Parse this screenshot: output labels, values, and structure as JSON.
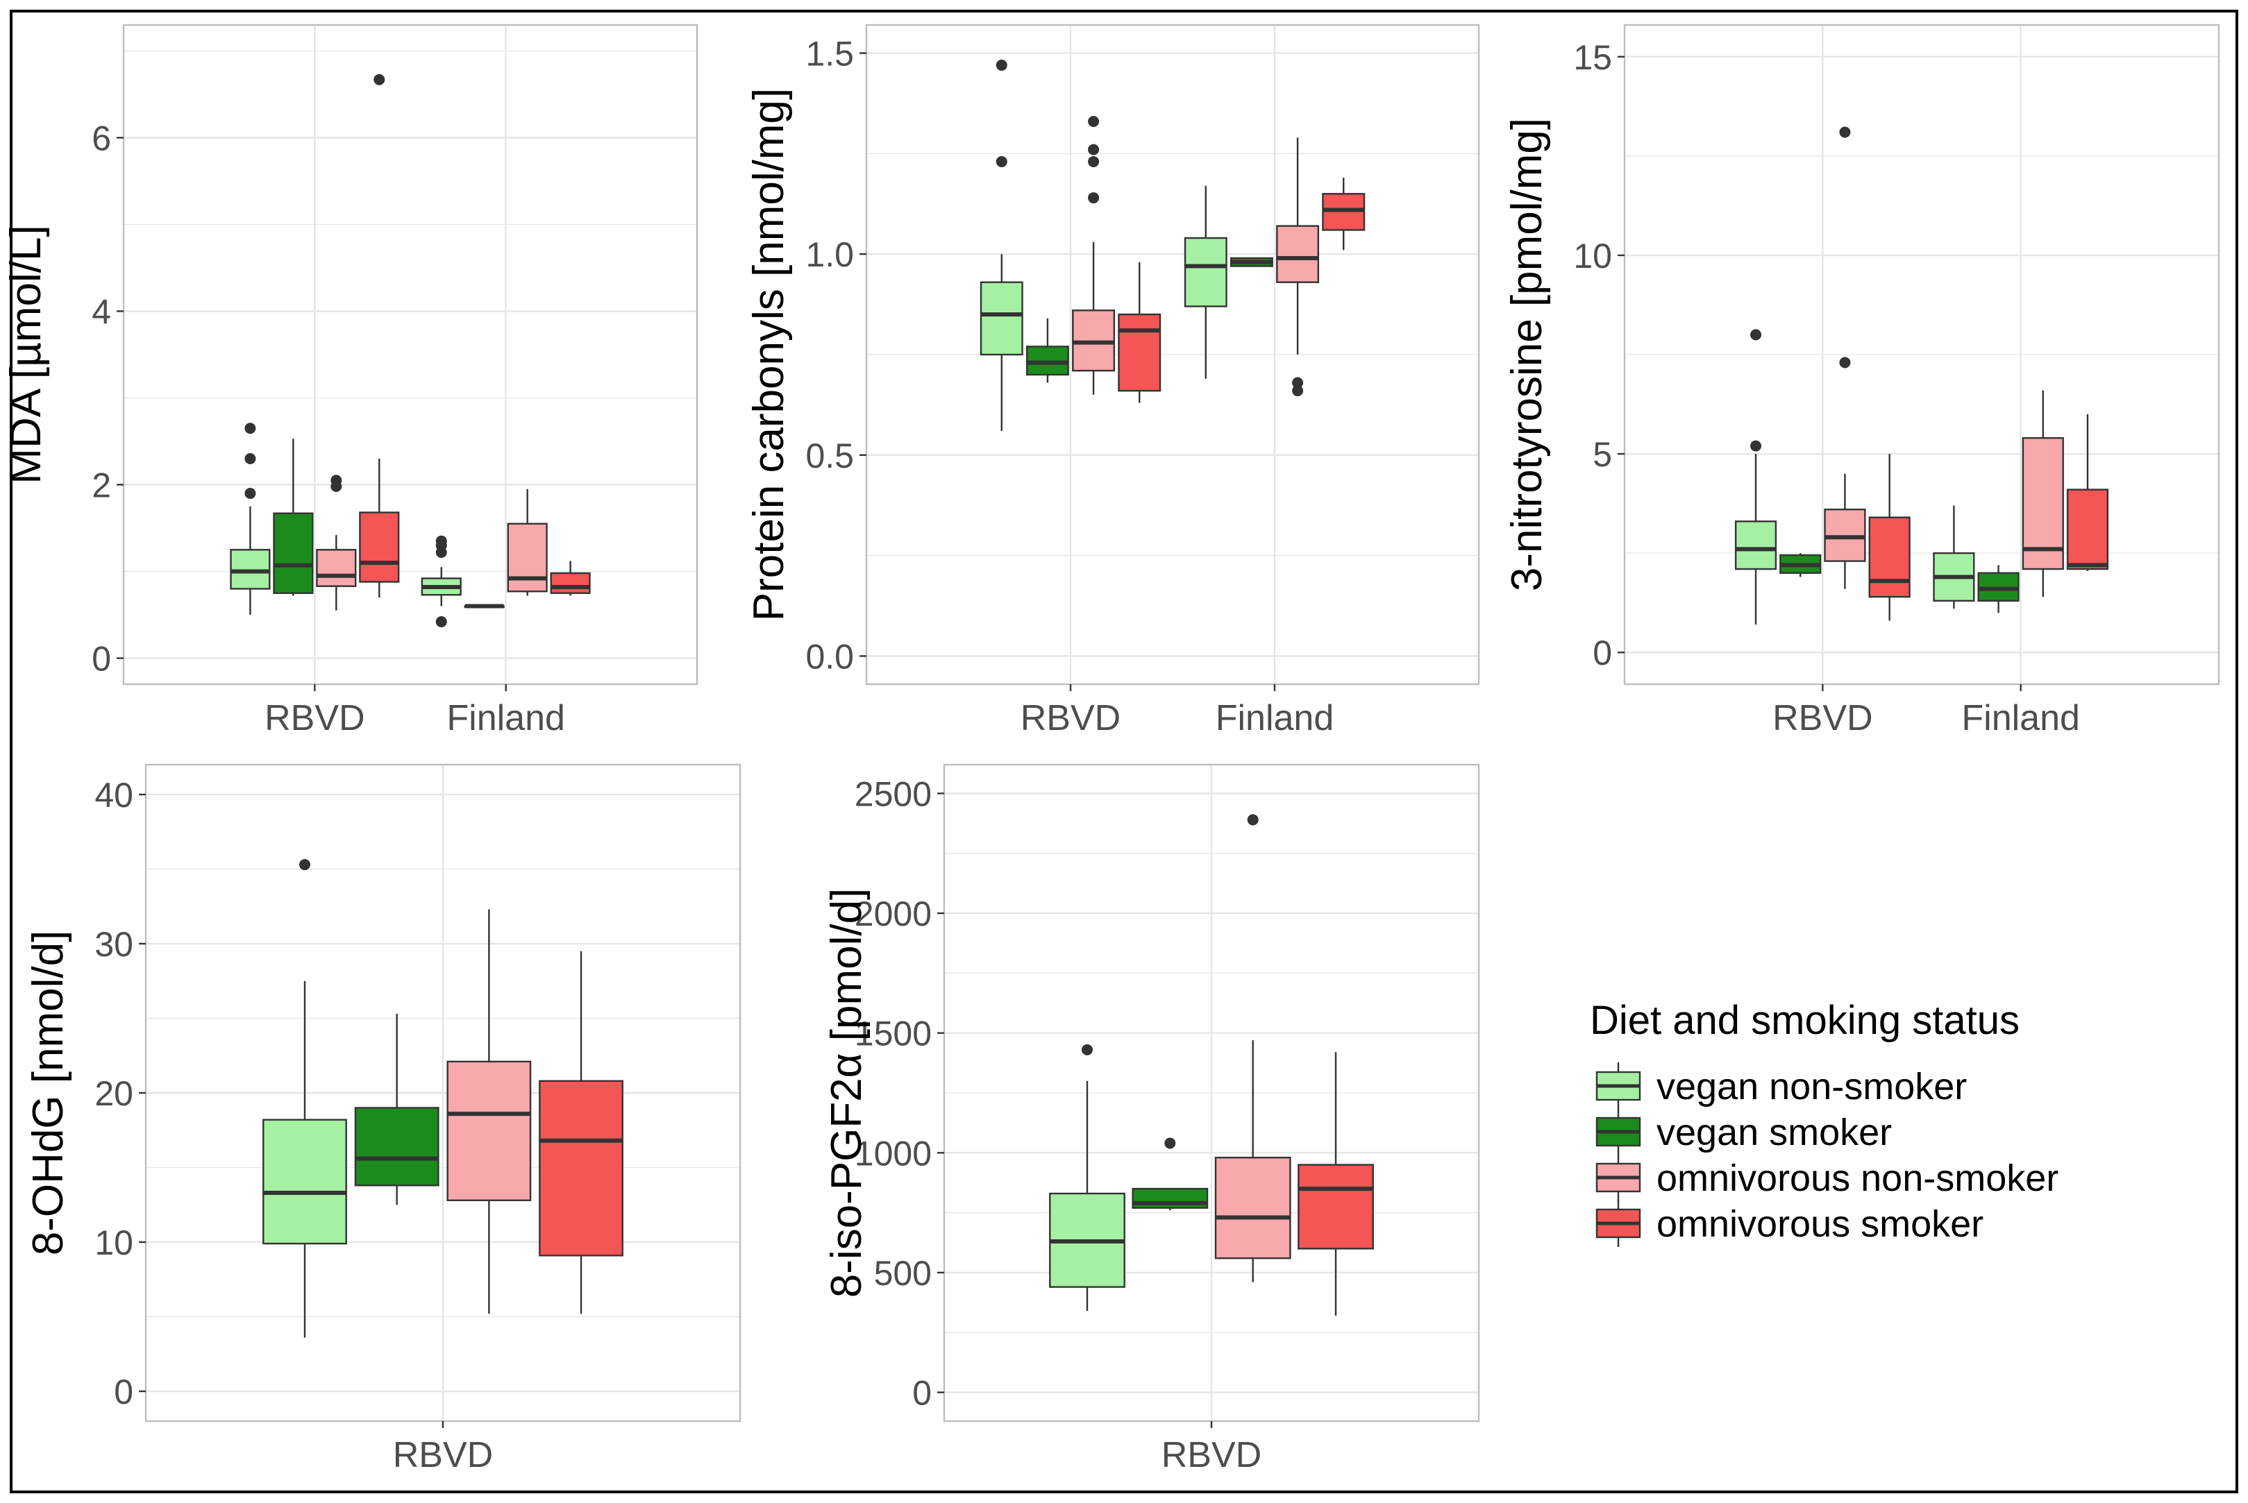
{
  "colors": {
    "vegan_non_smoker": "#a6f0a4",
    "vegan_smoker": "#1b8c1b",
    "omnivorous_non_smoker": "#f6a8aa",
    "omnivorous_smoker": "#f45555",
    "grid": "#e6e6e6",
    "panel_border": "#bdbdbd",
    "outer_border": "#000000"
  },
  "legend": {
    "title": "Diet and smoking status",
    "items": [
      {
        "key": "vegan_non_smoker",
        "label": "vegan non-smoker"
      },
      {
        "key": "vegan_smoker",
        "label": "vegan smoker"
      },
      {
        "key": "omnivorous_non_smoker",
        "label": "omnivorous non-smoker"
      },
      {
        "key": "omnivorous_smoker",
        "label": "omnivorous smoker"
      }
    ]
  },
  "chart_data": [
    {
      "type": "boxplot",
      "ylabel": "MDA [µmol/L]",
      "ylim": [
        -0.3,
        7.3
      ],
      "yticks": [
        0,
        2,
        4,
        6
      ],
      "yticklabels": [
        "0",
        "2",
        "4",
        "6"
      ],
      "categories": [
        "RBVD",
        "Finland"
      ],
      "series": [
        {
          "name": "vegan non-smoker",
          "key": "vegan_non_smoker",
          "boxes": [
            {
              "category": "RBVD",
              "min": 0.5,
              "q1": 0.8,
              "median": 1.0,
              "q3": 1.25,
              "max": 1.75,
              "outliers": [
                1.9,
                2.3,
                2.65
              ]
            },
            {
              "category": "Finland",
              "min": 0.6,
              "q1": 0.73,
              "median": 0.82,
              "q3": 0.92,
              "max": 1.05,
              "outliers": [
                0.42,
                1.22,
                1.3,
                1.35
              ]
            }
          ]
        },
        {
          "name": "vegan smoker",
          "key": "vegan_smoker",
          "boxes": [
            {
              "category": "RBVD",
              "min": 0.72,
              "q1": 0.75,
              "median": 1.07,
              "q3": 1.67,
              "max": 2.53,
              "outliers": []
            },
            {
              "category": "Finland",
              "min": 0.6,
              "q1": 0.6,
              "median": 0.6,
              "q3": 0.6,
              "max": 0.6,
              "outliers": []
            }
          ]
        },
        {
          "name": "omnivorous non-smoker",
          "key": "omnivorous_non_smoker",
          "boxes": [
            {
              "category": "RBVD",
              "min": 0.55,
              "q1": 0.83,
              "median": 0.95,
              "q3": 1.25,
              "max": 1.42,
              "outliers": [
                1.98,
                2.05
              ]
            },
            {
              "category": "Finland",
              "min": 0.72,
              "q1": 0.77,
              "median": 0.92,
              "q3": 1.55,
              "max": 1.95,
              "outliers": []
            }
          ]
        },
        {
          "name": "omnivorous smoker",
          "key": "omnivorous_smoker",
          "boxes": [
            {
              "category": "RBVD",
              "min": 0.7,
              "q1": 0.88,
              "median": 1.1,
              "q3": 1.68,
              "max": 2.3,
              "outliers": [
                6.67
              ]
            },
            {
              "category": "Finland",
              "min": 0.72,
              "q1": 0.75,
              "median": 0.82,
              "q3": 0.98,
              "max": 1.12,
              "outliers": []
            }
          ]
        }
      ]
    },
    {
      "type": "boxplot",
      "ylabel": "Protein carbonyls [nmol/mg]",
      "ylim": [
        -0.07,
        1.57
      ],
      "yticks": [
        0,
        0.5,
        1.0,
        1.5
      ],
      "yticklabels": [
        "0.0",
        "0.5",
        "1.0",
        "1.5"
      ],
      "categories": [
        "RBVD",
        "Finland"
      ],
      "series": [
        {
          "name": "vegan non-smoker",
          "key": "vegan_non_smoker",
          "boxes": [
            {
              "category": "RBVD",
              "min": 0.56,
              "q1": 0.75,
              "median": 0.85,
              "q3": 0.93,
              "max": 1.0,
              "outliers": [
                1.23,
                1.47
              ]
            },
            {
              "category": "Finland",
              "min": 0.69,
              "q1": 0.87,
              "median": 0.97,
              "q3": 1.04,
              "max": 1.17,
              "outliers": []
            }
          ]
        },
        {
          "name": "vegan smoker",
          "key": "vegan_smoker",
          "boxes": [
            {
              "category": "RBVD",
              "min": 0.68,
              "q1": 0.7,
              "median": 0.73,
              "q3": 0.77,
              "max": 0.84,
              "outliers": []
            },
            {
              "category": "Finland",
              "min": 0.97,
              "q1": 0.97,
              "median": 0.98,
              "q3": 0.99,
              "max": 0.99,
              "outliers": []
            }
          ]
        },
        {
          "name": "omnivorous non-smoker",
          "key": "omnivorous_non_smoker",
          "boxes": [
            {
              "category": "RBVD",
              "min": 0.65,
              "q1": 0.71,
              "median": 0.78,
              "q3": 0.86,
              "max": 1.03,
              "outliers": [
                1.14,
                1.23,
                1.26,
                1.33
              ]
            },
            {
              "category": "Finland",
              "min": 0.75,
              "q1": 0.93,
              "median": 0.99,
              "q3": 1.07,
              "max": 1.29,
              "outliers": [
                0.66,
                0.68
              ]
            }
          ]
        },
        {
          "name": "omnivorous smoker",
          "key": "omnivorous_smoker",
          "boxes": [
            {
              "category": "RBVD",
              "min": 0.63,
              "q1": 0.66,
              "median": 0.81,
              "q3": 0.85,
              "max": 0.98,
              "outliers": []
            },
            {
              "category": "Finland",
              "min": 1.01,
              "q1": 1.06,
              "median": 1.11,
              "q3": 1.15,
              "max": 1.19,
              "outliers": []
            }
          ]
        }
      ]
    },
    {
      "type": "boxplot",
      "ylabel": "3-nitrotyrosine [pmol/mg]",
      "ylim": [
        -0.8,
        15.8
      ],
      "yticks": [
        0,
        5,
        10,
        15
      ],
      "yticklabels": [
        "0",
        "5",
        "10",
        "15"
      ],
      "categories": [
        "RBVD",
        "Finland"
      ],
      "series": [
        {
          "name": "vegan non-smoker",
          "key": "vegan_non_smoker",
          "boxes": [
            {
              "category": "RBVD",
              "min": 0.7,
              "q1": 2.1,
              "median": 2.6,
              "q3": 3.3,
              "max": 5.0,
              "outliers": [
                5.2,
                8.0
              ]
            },
            {
              "category": "Finland",
              "min": 1.1,
              "q1": 1.3,
              "median": 1.9,
              "q3": 2.5,
              "max": 3.7,
              "outliers": []
            }
          ]
        },
        {
          "name": "vegan smoker",
          "key": "vegan_smoker",
          "boxes": [
            {
              "category": "RBVD",
              "min": 1.9,
              "q1": 2.0,
              "median": 2.2,
              "q3": 2.45,
              "max": 2.5,
              "outliers": []
            },
            {
              "category": "Finland",
              "min": 1.0,
              "q1": 1.3,
              "median": 1.6,
              "q3": 2.0,
              "max": 2.2,
              "outliers": []
            }
          ]
        },
        {
          "name": "omnivorous non-smoker",
          "key": "omnivorous_non_smoker",
          "boxes": [
            {
              "category": "RBVD",
              "min": 1.6,
              "q1": 2.3,
              "median": 2.9,
              "q3": 3.6,
              "max": 4.5,
              "outliers": [
                7.3,
                13.1
              ]
            },
            {
              "category": "Finland",
              "min": 1.4,
              "q1": 2.1,
              "median": 2.6,
              "q3": 5.4,
              "max": 6.6,
              "outliers": []
            }
          ]
        },
        {
          "name": "omnivorous smoker",
          "key": "omnivorous_smoker",
          "boxes": [
            {
              "category": "RBVD",
              "min": 0.8,
              "q1": 1.4,
              "median": 1.8,
              "q3": 3.4,
              "max": 5.0,
              "outliers": []
            },
            {
              "category": "Finland",
              "min": 2.05,
              "q1": 2.1,
              "median": 2.2,
              "q3": 4.1,
              "max": 6.0,
              "outliers": []
            }
          ]
        }
      ]
    },
    {
      "type": "boxplot",
      "ylabel": "8-OHdG [nmol/d]",
      "ylim": [
        -2,
        42
      ],
      "yticks": [
        0,
        10,
        20,
        30,
        40
      ],
      "yticklabels": [
        "0",
        "10",
        "20",
        "30",
        "40"
      ],
      "categories": [
        "RBVD"
      ],
      "series": [
        {
          "name": "vegan non-smoker",
          "key": "vegan_non_smoker",
          "boxes": [
            {
              "category": "RBVD",
              "min": 3.6,
              "q1": 9.9,
              "median": 13.3,
              "q3": 18.2,
              "max": 27.5,
              "outliers": [
                35.3
              ]
            }
          ]
        },
        {
          "name": "vegan smoker",
          "key": "vegan_smoker",
          "boxes": [
            {
              "category": "RBVD",
              "min": 12.5,
              "q1": 13.8,
              "median": 15.6,
              "q3": 19.0,
              "max": 25.3,
              "outliers": []
            }
          ]
        },
        {
          "name": "omnivorous non-smoker",
          "key": "omnivorous_non_smoker",
          "boxes": [
            {
              "category": "RBVD",
              "min": 5.2,
              "q1": 12.8,
              "median": 18.6,
              "q3": 22.1,
              "max": 32.3,
              "outliers": []
            }
          ]
        },
        {
          "name": "omnivorous smoker",
          "key": "omnivorous_smoker",
          "boxes": [
            {
              "category": "RBVD",
              "min": 5.2,
              "q1": 9.1,
              "median": 16.8,
              "q3": 20.8,
              "max": 29.5,
              "outliers": []
            }
          ]
        }
      ]
    },
    {
      "type": "boxplot",
      "ylabel": "8-iso-PGF2α [pmol/d]",
      "ylim": [
        -120,
        2620
      ],
      "yticks": [
        0,
        500,
        1000,
        1500,
        2000,
        2500
      ],
      "yticklabels": [
        "0",
        "500",
        "1000",
        "1500",
        "2000",
        "2500"
      ],
      "categories": [
        "RBVD"
      ],
      "series": [
        {
          "name": "vegan non-smoker",
          "key": "vegan_non_smoker",
          "boxes": [
            {
              "category": "RBVD",
              "min": 340,
              "q1": 440,
              "median": 630,
              "q3": 830,
              "max": 1300,
              "outliers": [
                1430
              ]
            }
          ]
        },
        {
          "name": "vegan smoker",
          "key": "vegan_smoker",
          "boxes": [
            {
              "category": "RBVD",
              "min": 760,
              "q1": 770,
              "median": 790,
              "q3": 850,
              "max": 850,
              "outliers": [
                1040
              ]
            }
          ]
        },
        {
          "name": "omnivorous non-smoker",
          "key": "omnivorous_non_smoker",
          "boxes": [
            {
              "category": "RBVD",
              "min": 460,
              "q1": 560,
              "median": 730,
              "q3": 980,
              "max": 1470,
              "outliers": [
                2390
              ]
            }
          ]
        },
        {
          "name": "omnivorous smoker",
          "key": "omnivorous_smoker",
          "boxes": [
            {
              "category": "RBVD",
              "min": 320,
              "q1": 600,
              "median": 850,
              "q3": 950,
              "max": 1420,
              "outliers": []
            }
          ]
        }
      ]
    }
  ]
}
